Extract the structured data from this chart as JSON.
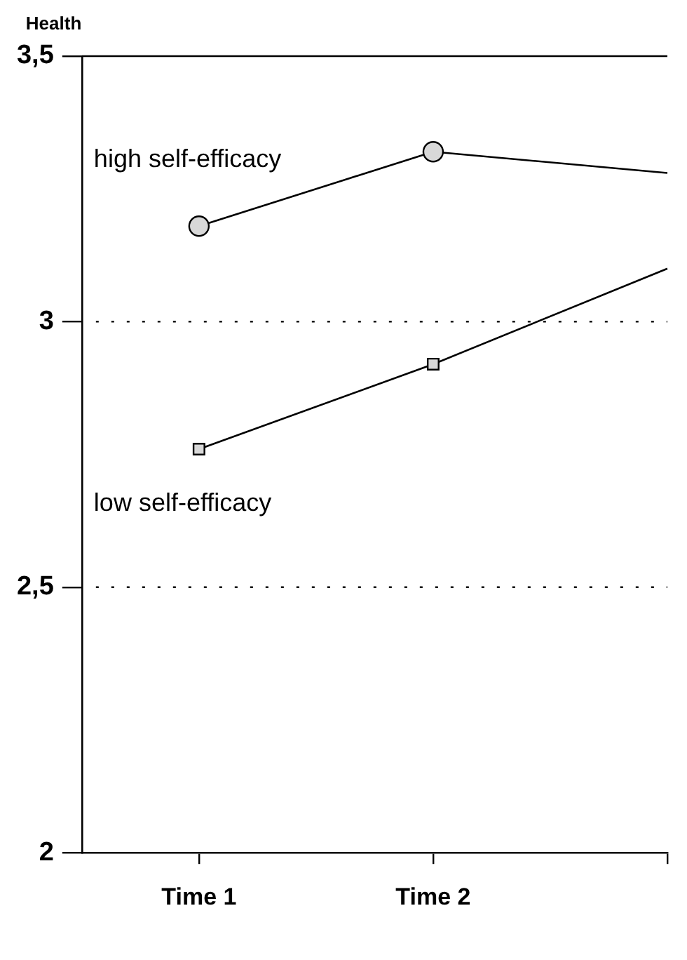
{
  "chart_data": {
    "type": "line",
    "ylabel": "Health",
    "categories": [
      "Time 1",
      "Time 2",
      null
    ],
    "ylim": [
      2,
      3.5
    ],
    "yticks": [
      2,
      {
        "value": 2.5,
        "label": "2,5"
      },
      3,
      {
        "value": 3.5,
        "label": "3,5"
      }
    ],
    "series": [
      {
        "name": "high self-efficacy",
        "color": "#000000",
        "marker": "circle",
        "values": [
          3.18,
          3.32,
          3.28
        ]
      },
      {
        "name": "low self-efficacy",
        "color": "#000000",
        "marker": "square",
        "values": [
          2.76,
          2.92,
          3.1
        ]
      }
    ],
    "ref_lines": [
      {
        "axis": "y",
        "value": 3,
        "line_style": "dotted"
      },
      {
        "axis": "y",
        "value": 2.5,
        "line_style": "dotted"
      }
    ],
    "grid": false,
    "legend": false,
    "line_style": "solid"
  }
}
